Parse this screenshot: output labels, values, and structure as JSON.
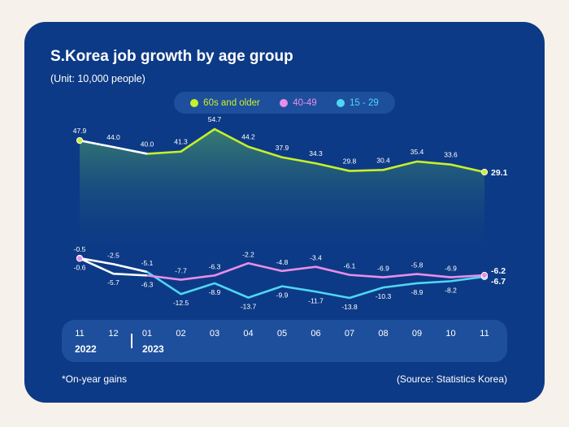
{
  "title": "S.Korea job growth by age group",
  "subtitle": "(Unit: 10,000 people)",
  "footnote": "*On-year gains",
  "source": "(Source: Statistics Korea)",
  "colors": {
    "background": "#f6f1ea",
    "card": "#0d3a86",
    "panel": "#1e4f9d",
    "s60": "#c8f02a",
    "s40": "#e98ee8",
    "s15": "#4fd6f2",
    "line_white": "#ffffff"
  },
  "legend": [
    {
      "label": "60s and older",
      "color": "#c8f02a"
    },
    {
      "label": "40-49",
      "color": "#e98ee8"
    },
    {
      "label": "15 - 29",
      "color": "#4fd6f2"
    }
  ],
  "chart_data": {
    "type": "line",
    "title": "S.Korea job growth by age group",
    "ylabel": "10,000 people",
    "categories": [
      "11",
      "12",
      "01",
      "02",
      "03",
      "04",
      "05",
      "06",
      "07",
      "08",
      "09",
      "10",
      "11"
    ],
    "years": [
      {
        "label": "2022",
        "start_index": 0
      },
      {
        "label": "2023",
        "start_index": 2
      }
    ],
    "series": [
      {
        "name": "60s and older",
        "color": "#c8f02a",
        "area": true,
        "values": [
          47.9,
          44.0,
          40.0,
          41.3,
          54.7,
          44.2,
          37.9,
          34.3,
          29.8,
          30.4,
          35.4,
          33.6,
          29.1
        ],
        "labels": [
          "47.9",
          "44.0",
          "40.0",
          "41.3",
          "54.7",
          "44.2",
          "37.9",
          "34.3",
          "29.8",
          "30.4",
          "35.4",
          "33.6",
          "29.1"
        ]
      },
      {
        "name": "40-49",
        "color": "#e98ee8",
        "values": [
          -0.6,
          -5.7,
          -6.3,
          -7.7,
          -6.3,
          -2.2,
          -4.8,
          -3.4,
          -6.1,
          -6.9,
          -5.8,
          -6.9,
          -6.2
        ],
        "labels": [
          "-0.6",
          "-5.7",
          "-6.3",
          "-7.7",
          "-6.3",
          "-2.2",
          "-4.8",
          "-3.4",
          "-6.1",
          "-6.9",
          "-5.8",
          "-6.9",
          "-6.2"
        ]
      },
      {
        "name": "15 - 29",
        "color": "#4fd6f2",
        "values": [
          -0.5,
          -2.5,
          -5.1,
          -12.5,
          -8.9,
          -13.7,
          -9.9,
          -11.7,
          -13.8,
          -10.3,
          -8.9,
          -8.2,
          -6.7
        ],
        "labels": [
          "-0.5",
          "-2.5",
          "-5.1",
          "-12.5",
          "-8.9",
          "-13.7",
          "-9.9",
          "-11.7",
          "-13.8",
          "-10.3",
          "-8.9",
          "-8.2",
          "-6.7"
        ]
      }
    ]
  }
}
